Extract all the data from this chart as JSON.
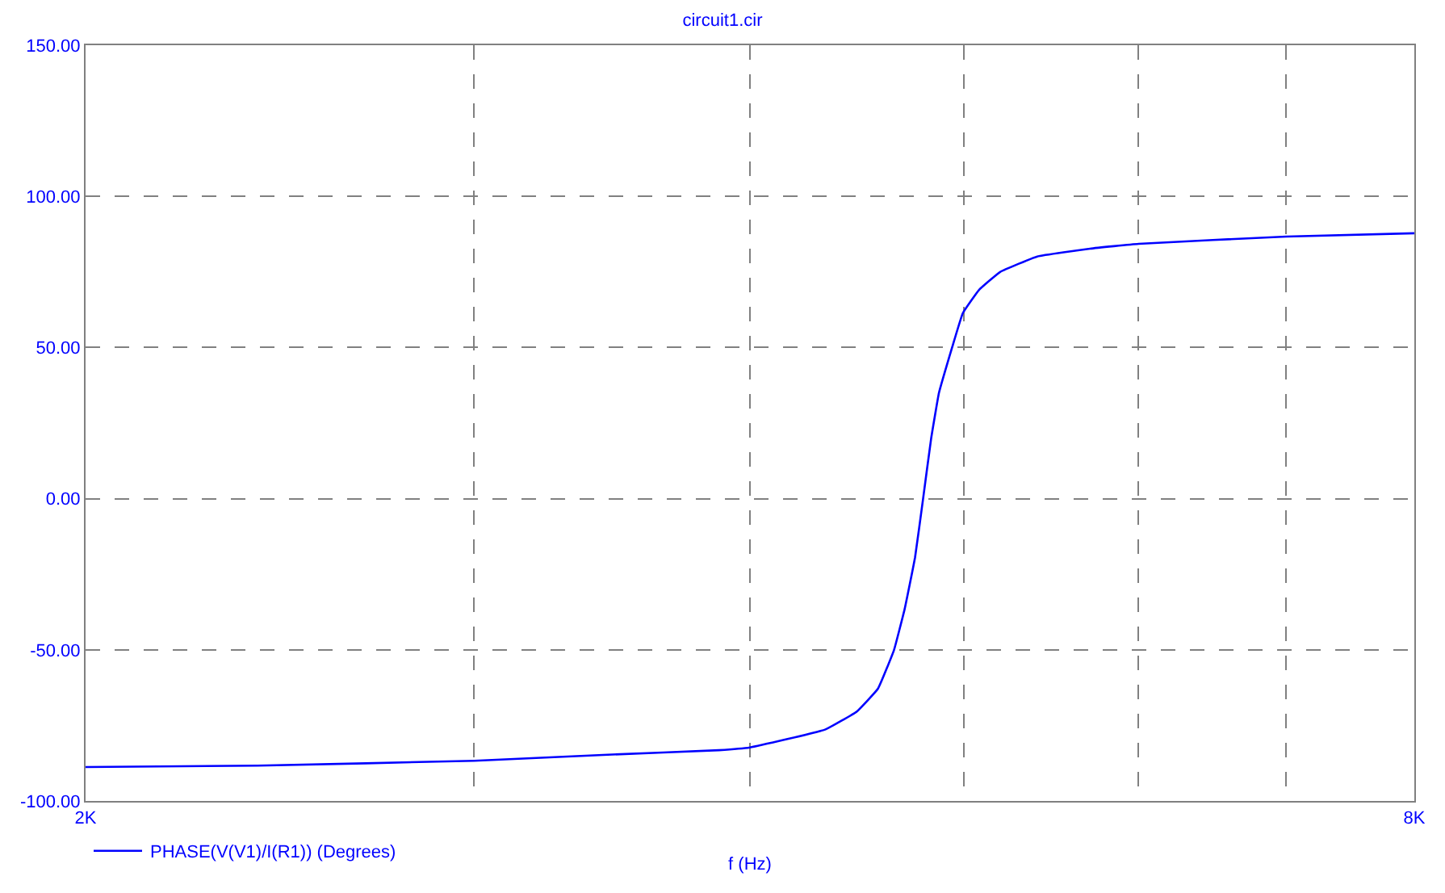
{
  "chart_data": {
    "type": "line",
    "title": "circuit1.cir",
    "xlabel": "f (Hz)",
    "log": "x",
    "grid": true,
    "legend": "bottom left",
    "x": [
      2000,
      2393,
      3000,
      3448,
      3873,
      4000,
      4326,
      4472,
      4572,
      4649,
      4701,
      4752,
      4792,
      4832,
      4872,
      4941,
      4995,
      5079,
      5193,
      5398,
      5704,
      6000,
      7000,
      8000
    ],
    "series": [
      {
        "name": "PHASE(V(V1)/I(R1)) (Degrees)",
        "color": "#0000ff",
        "values": [
          -88.8,
          -88.3,
          -86.7,
          -84.7,
          -83.2,
          -82.3,
          -76.4,
          -70.4,
          -62.8,
          -50,
          -36.4,
          -19.4,
          0,
          19.7,
          35,
          50.4,
          61.4,
          69,
          75,
          80.1,
          82.7,
          84.3,
          86.7,
          87.8
        ]
      }
    ],
    "xlim": [
      2000,
      8000
    ],
    "ylim": [
      -100,
      150
    ],
    "xticks": [
      {
        "value": 2000,
        "label": "2K"
      },
      {
        "value": 3000,
        "label": null
      },
      {
        "value": 4000,
        "label": null
      },
      {
        "value": 5000,
        "label": null
      },
      {
        "value": 6000,
        "label": null
      },
      {
        "value": 7000,
        "label": null
      },
      {
        "value": 8000,
        "label": "8K"
      }
    ],
    "yticks": [
      {
        "value": -100,
        "label": "-100.00"
      },
      {
        "value": -50,
        "label": "-50.00"
      },
      {
        "value": 0,
        "label": "0.00"
      },
      {
        "value": 50,
        "label": "50.00"
      },
      {
        "value": 100,
        "label": "100.00"
      },
      {
        "value": 150,
        "label": "150.00"
      }
    ]
  }
}
